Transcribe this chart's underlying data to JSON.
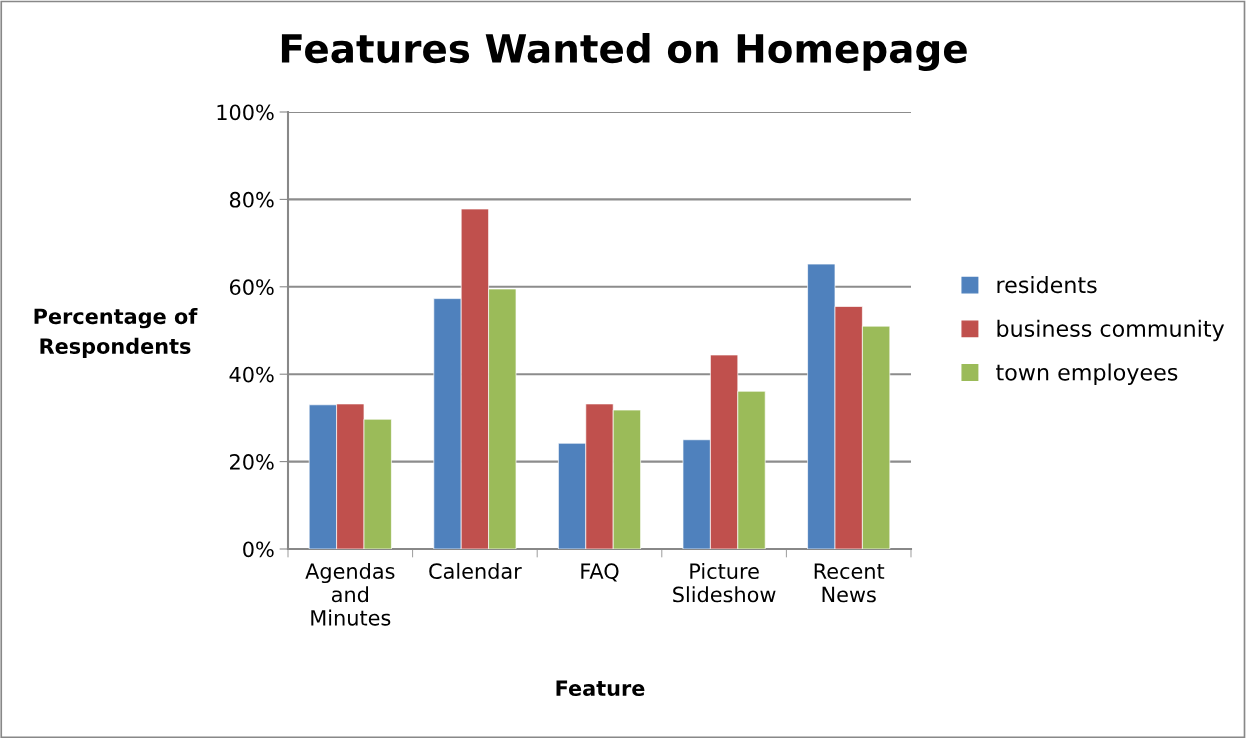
{
  "chart_data": {
    "type": "bar",
    "title": "Features Wanted on Homepage",
    "xlabel": "Feature",
    "ylabel": "Percentage of Respondents",
    "categories": [
      "Agendas and Minutes",
      "Calendar",
      "FAQ",
      "Picture Slideshow",
      "Recent News"
    ],
    "series": [
      {
        "name": "residents",
        "color": "#4f81bd",
        "values": [
          33.0,
          57.3,
          24.2,
          25.0,
          65.2
        ]
      },
      {
        "name": "business community",
        "color": "#c0504d",
        "values": [
          33.2,
          77.8,
          33.2,
          44.4,
          55.5
        ]
      },
      {
        "name": "town employees",
        "color": "#9bbb59",
        "values": [
          29.7,
          59.5,
          31.8,
          36.1,
          51.0
        ]
      }
    ],
    "ylim": [
      0,
      100
    ],
    "yticks": [
      {
        "value": 0,
        "label": "0%"
      },
      {
        "value": 20,
        "label": "20%"
      },
      {
        "value": 40,
        "label": "40%"
      },
      {
        "value": 60,
        "label": "60%"
      },
      {
        "value": 80,
        "label": "80%"
      },
      {
        "value": 100,
        "label": "100%"
      }
    ],
    "grid": "y",
    "legend": "right"
  }
}
